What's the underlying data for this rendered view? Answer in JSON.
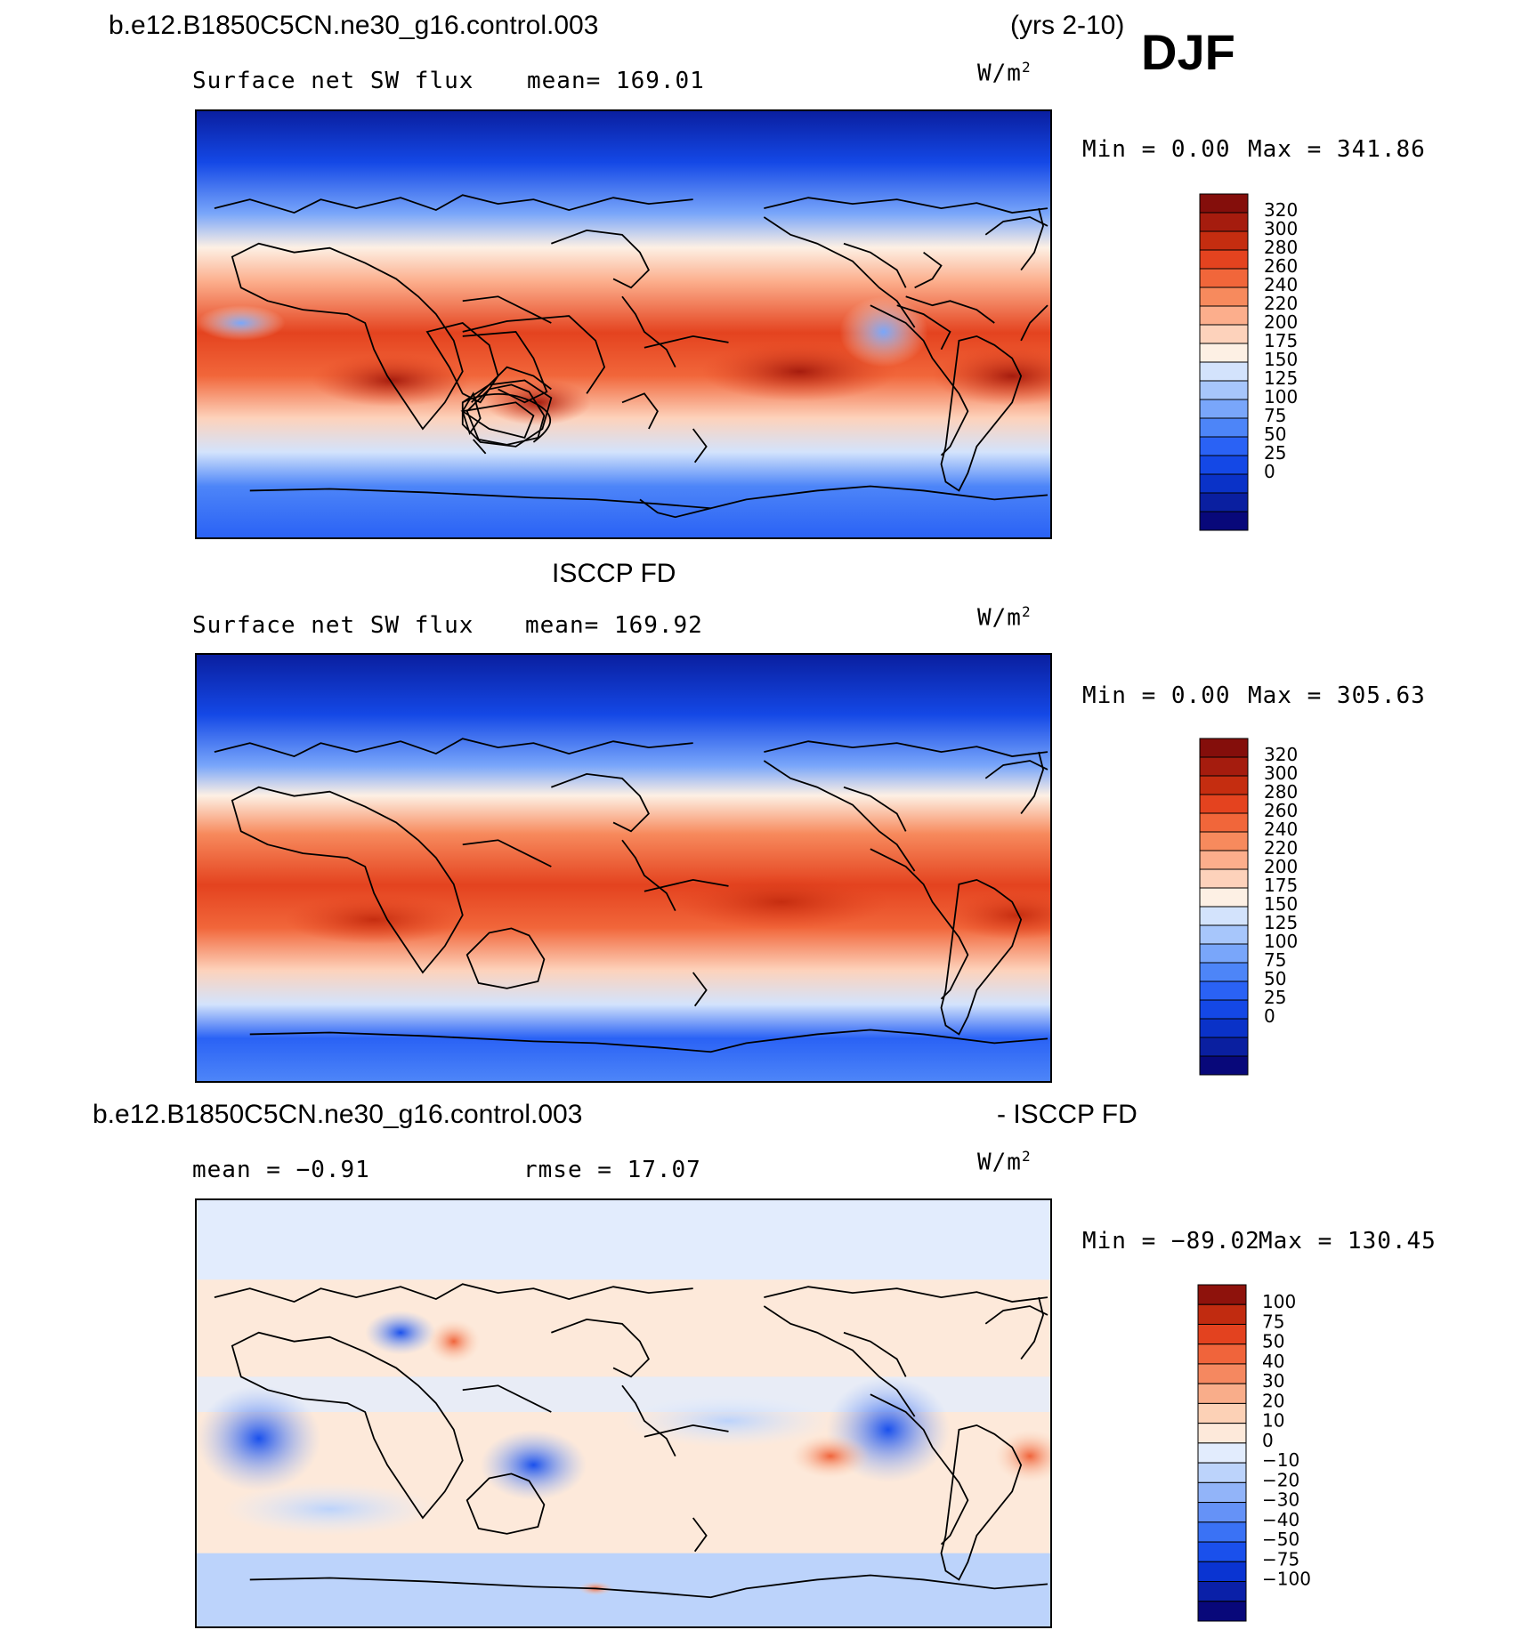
{
  "header": {
    "case_name": "b.e12.B1850C5CN.ne30_g16.control.003",
    "years": "(yrs 2-10)",
    "season": "DJF"
  },
  "colors": {
    "mean_palette": [
      "#08087a",
      "#0a1fa0",
      "#0a32c8",
      "#1448e6",
      "#2a62f5",
      "#4d85f8",
      "#79a6fa",
      "#a7c6fb",
      "#d3e3fc",
      "#fdf0e4",
      "#fdd2bb",
      "#fcae8c",
      "#f78a5d",
      "#f1663a",
      "#e4431f",
      "#c52d10",
      "#a51c0e",
      "#840e0b"
    ],
    "diff_palette": [
      "#08087a",
      "#0a20a8",
      "#0a34d2",
      "#1a50ec",
      "#3a72f5",
      "#6592f7",
      "#92b4f9",
      "#bcd3fb",
      "#e2ecfd",
      "#fde9da",
      "#fcd1b6",
      "#f9ad8a",
      "#f58860",
      "#f0643b",
      "#e3421f",
      "#c12b10",
      "#8e120c"
    ]
  },
  "panels": [
    {
      "id": "model",
      "title": "",
      "field": "Surface net SW flux",
      "stat1": "mean=  169.01",
      "stat2": "",
      "units_base": "W/m",
      "units_exp": "2",
      "min_text": "Min  =    0.00",
      "max_text": "Max  =  341.86"
    },
    {
      "id": "obs",
      "title": "ISCCP FD",
      "field": "Surface net SW flux",
      "stat1": "mean=  169.92",
      "stat2": "",
      "units_base": "W/m",
      "units_exp": "2",
      "min_text": "Min  =    0.00",
      "max_text": "Max  =  305.63"
    },
    {
      "id": "diff",
      "title_left": "b.e12.B1850C5CN.ne30_g16.control.003",
      "title_right": "- ISCCP FD",
      "field": "",
      "stat1": "mean  =   −0.91",
      "stat2": "rmse  =   17.07",
      "units_base": "W/m",
      "units_exp": "2",
      "min_text": "Min  = −89.02",
      "max_text": "Max  =  130.45"
    }
  ],
  "chart_data": [
    {
      "type": "heatmap",
      "title": "b.e12.B1850C5CN.ne30_g16.control.003 (yrs 2-10) DJF",
      "subtitle": "Surface net SW flux",
      "units": "W/m2",
      "mean": 169.01,
      "min": 0.0,
      "max": 341.86,
      "colorbar_levels": [
        0,
        25,
        50,
        75,
        100,
        125,
        150,
        175,
        200,
        220,
        240,
        260,
        280,
        300,
        320
      ],
      "colorbar_labels": [
        "320",
        "300",
        "280",
        "260",
        "240",
        "220",
        "200",
        "175",
        "150",
        "125",
        "100",
        "75",
        "50",
        "25",
        "0"
      ]
    },
    {
      "type": "heatmap",
      "title": "ISCCP FD",
      "subtitle": "Surface net SW flux",
      "units": "W/m2",
      "mean": 169.92,
      "min": 0.0,
      "max": 305.63,
      "colorbar_levels": [
        0,
        25,
        50,
        75,
        100,
        125,
        150,
        175,
        200,
        220,
        240,
        260,
        280,
        300,
        320
      ],
      "colorbar_labels": [
        "320",
        "300",
        "280",
        "260",
        "240",
        "220",
        "200",
        "175",
        "150",
        "125",
        "100",
        "75",
        "50",
        "25",
        "0"
      ]
    },
    {
      "type": "heatmap",
      "title": "b.e12.B1850C5CN.ne30_g16.control.003 - ISCCP FD",
      "units": "W/m2",
      "mean": -0.91,
      "rmse": 17.07,
      "min": -89.02,
      "max": 130.45,
      "colorbar_levels": [
        -100,
        -75,
        -50,
        -40,
        -30,
        -20,
        -10,
        0,
        10,
        20,
        30,
        40,
        50,
        75,
        100
      ],
      "colorbar_labels": [
        "100",
        "75",
        "50",
        "40",
        "30",
        "20",
        "10",
        "0",
        "−10",
        "−20",
        "−30",
        "−40",
        "−50",
        "−75",
        "−100"
      ]
    }
  ]
}
